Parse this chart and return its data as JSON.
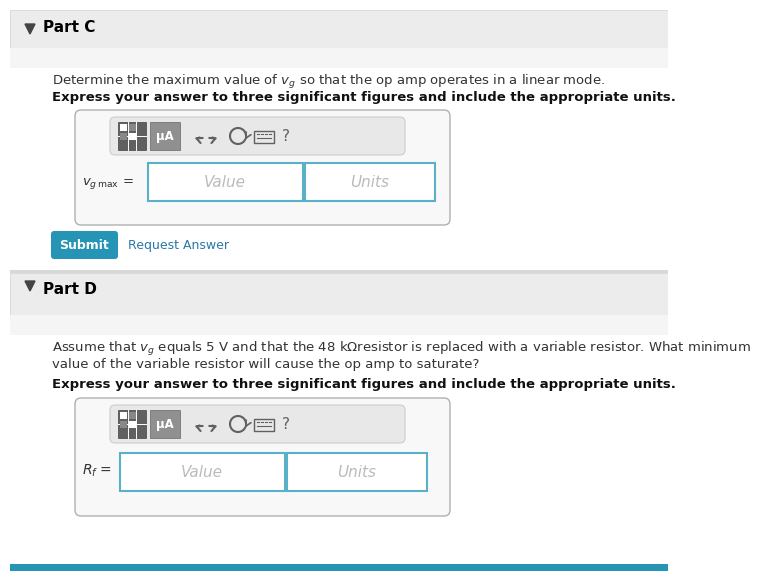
{
  "bg_color": "#ffffff",
  "header_bg": "#ececec",
  "header_border": "#d0d0d0",
  "part_c_header": "Part C",
  "part_d_header": "Part D",
  "part_c_text1": "Determine the maximum value of $v_g$ so that the op amp operates in a linear mode.",
  "part_c_text2": "Express your answer to three significant figures and include the appropriate units.",
  "part_d_text1": "Assume that $v_g$ equals 5 V and that the 48 kΩresistor is replaced with a variable resistor. What minimum",
  "part_d_text1b": "value of the variable resistor will cause the op amp to saturate?",
  "part_d_text2": "Express your answer to three significant figures and include the appropriate units.",
  "vg_label": "$v_{g\\,\\mathrm{max}}$ =",
  "rf_label": "$R_f$ =",
  "value_placeholder": "Value",
  "units_placeholder": "Units",
  "submit_text": "Submit",
  "request_text": "Request Answer",
  "submit_bg": "#2695b5",
  "submit_fg": "#ffffff",
  "request_fg": "#2878a8",
  "box_border": "#5ab0c8",
  "toolbar_bg": "#e8e8e8",
  "icon1_bg": "#606060",
  "icon2_bg": "#909090",
  "arrow_color": "#606060",
  "question_color": "#606060",
  "triangle_color": "#444444",
  "part_label_color": "#000000",
  "text_color": "#333333",
  "bold_text_color": "#111111",
  "toolbar_border": "#cccccc",
  "outer_box_border": "#b0b0b0"
}
